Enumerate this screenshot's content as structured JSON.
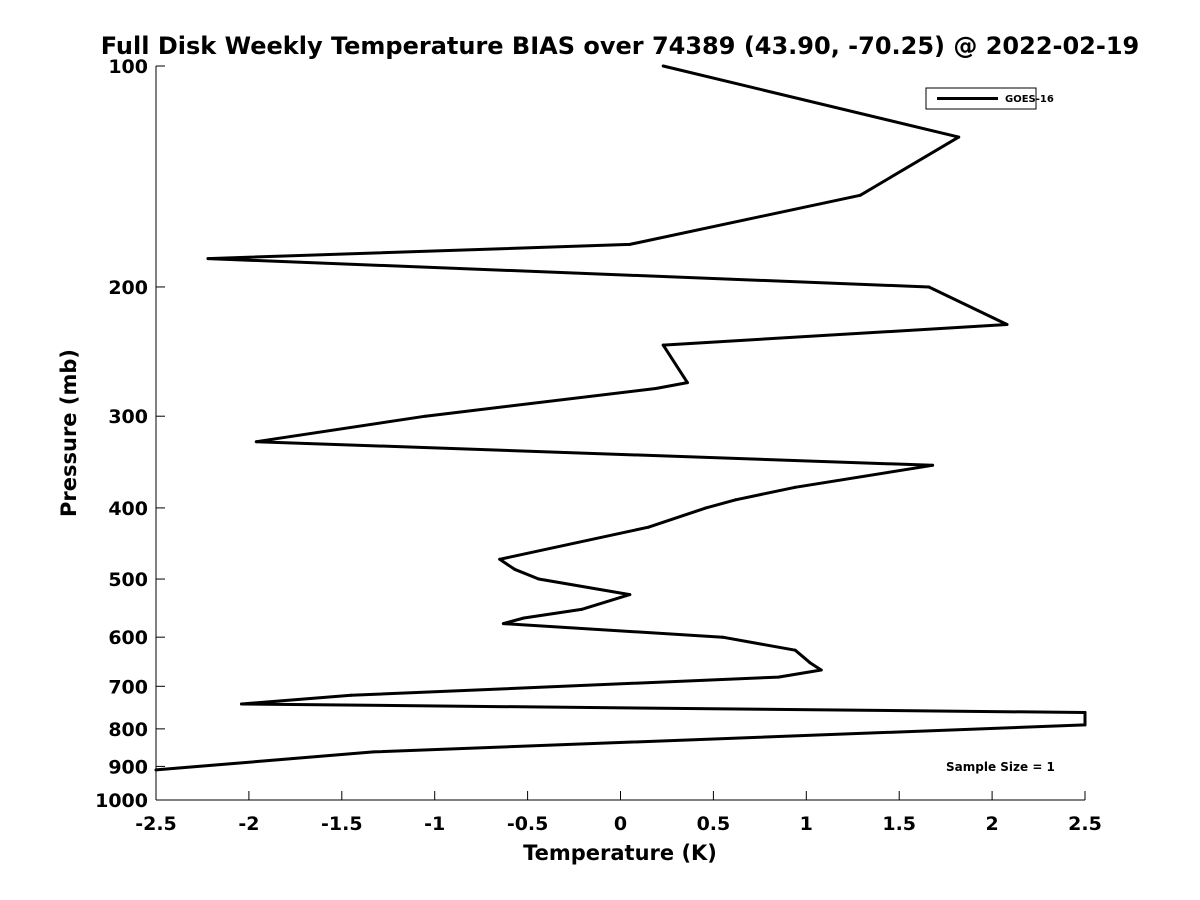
{
  "chart_data": {
    "type": "line",
    "title": "Full Disk Weekly Temperature BIAS over 74389 (43.90, -70.25) @ 2022-02-19",
    "xlabel": "Temperature (K)",
    "ylabel": "Pressure (mb)",
    "xlim": [
      -2.5,
      2.5
    ],
    "ylim": [
      100,
      1000
    ],
    "y_scale": "log",
    "y_reversed": true,
    "x_ticks": [
      -2.5,
      -2,
      -1.5,
      -1,
      -0.5,
      0,
      0.5,
      1,
      1.5,
      2,
      2.5
    ],
    "x_tick_labels": [
      "-2.5",
      "-2",
      "-1.5",
      "-1",
      "-0.5",
      "0",
      "0.5",
      "1",
      "1.5",
      "2",
      "2.5"
    ],
    "y_ticks": [
      100,
      200,
      300,
      400,
      500,
      600,
      700,
      800,
      900,
      1000
    ],
    "y_tick_labels": [
      "100",
      "200",
      "300",
      "400",
      "500",
      "600",
      "700",
      "800",
      "900",
      "1000"
    ],
    "grid": false,
    "legend": {
      "placement": "top-right",
      "entries": [
        "GOES-16"
      ]
    },
    "annotation": "Sample Size = 1",
    "line_color": "#000000",
    "series": [
      {
        "name": "GOES-16",
        "points": [
          [
            0.23,
            100
          ],
          [
            1.82,
            125
          ],
          [
            1.29,
            150
          ],
          [
            0.05,
            175
          ],
          [
            -2.22,
            183
          ],
          [
            1.66,
            200
          ],
          [
            2.08,
            225
          ],
          [
            0.23,
            240
          ],
          [
            0.36,
            270
          ],
          [
            0.19,
            275
          ],
          [
            -1.05,
            300
          ],
          [
            -1.96,
            325
          ],
          [
            1.68,
            350
          ],
          [
            0.94,
            375
          ],
          [
            0.62,
            390
          ],
          [
            0.46,
            400
          ],
          [
            0.15,
            425
          ],
          [
            -0.65,
            470
          ],
          [
            -0.57,
            485
          ],
          [
            -0.44,
            500
          ],
          [
            0.05,
            525
          ],
          [
            -0.21,
            550
          ],
          [
            -0.52,
            565
          ],
          [
            -0.63,
            575
          ],
          [
            0.55,
            600
          ],
          [
            0.94,
            625
          ],
          [
            1.02,
            650
          ],
          [
            1.08,
            665
          ],
          [
            0.85,
            680
          ],
          [
            -1.45,
            720
          ],
          [
            -2.04,
            740
          ],
          [
            2.5,
            760
          ],
          [
            2.5,
            790
          ],
          [
            -1.33,
            860
          ],
          [
            -2.5,
            910
          ]
        ]
      }
    ]
  }
}
